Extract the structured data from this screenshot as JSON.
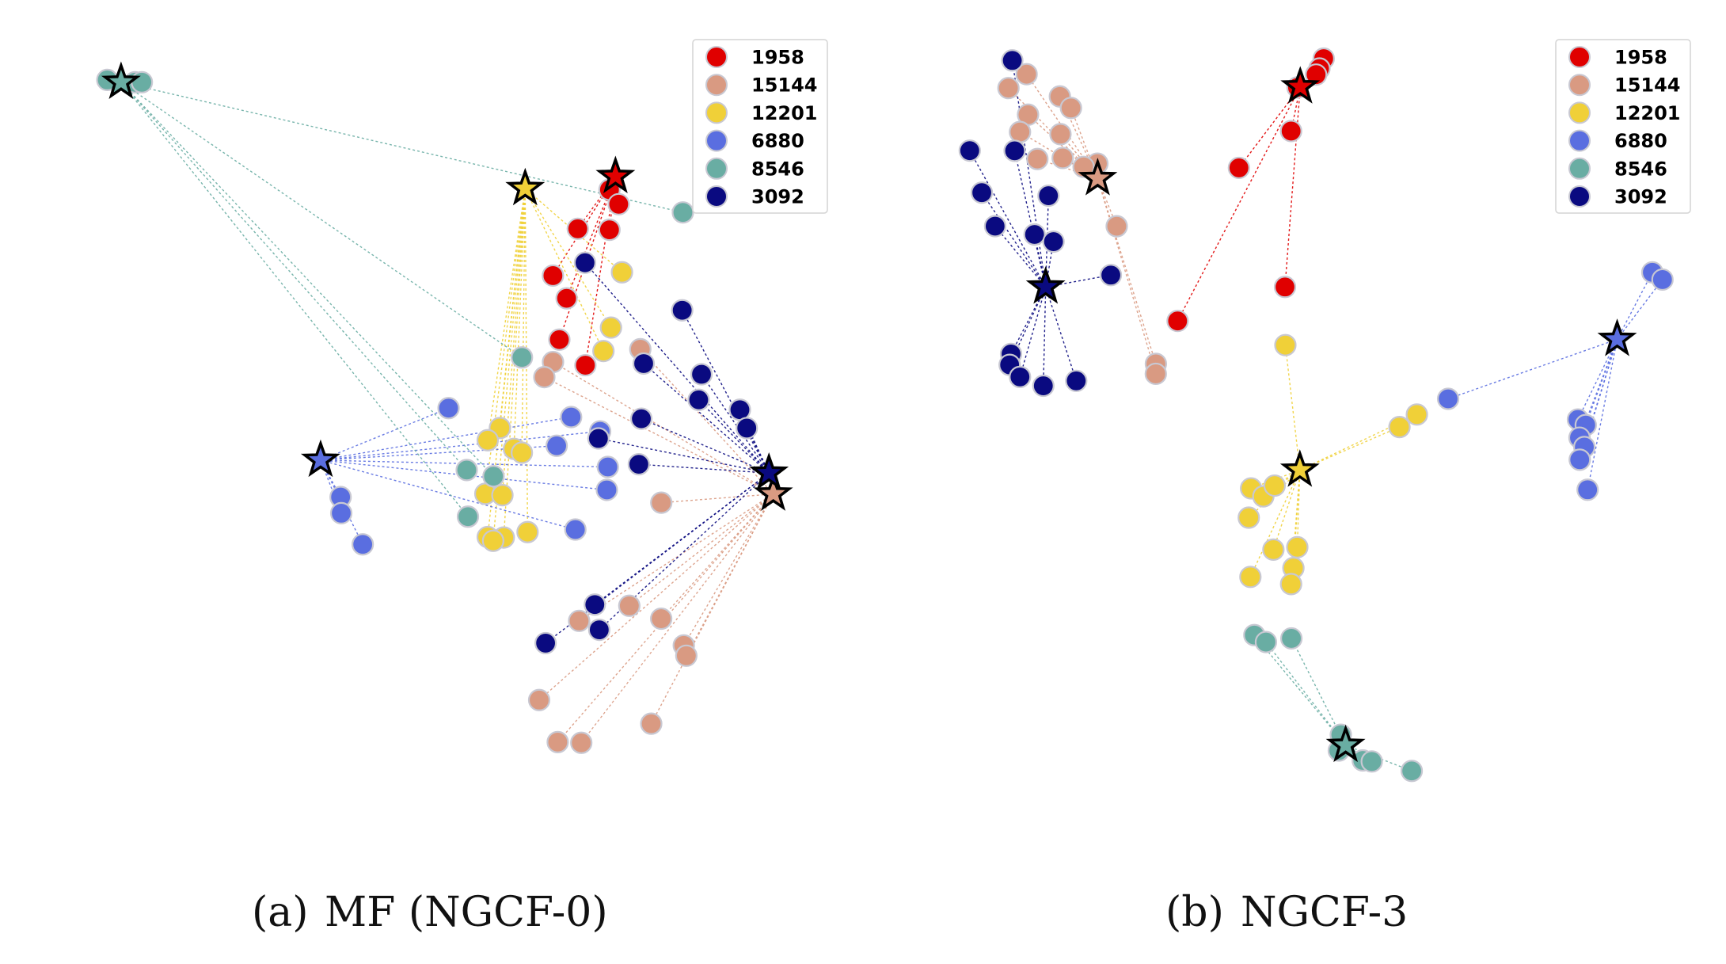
{
  "legend_entries": [
    {
      "label": "1958",
      "color": "#e00000"
    },
    {
      "label": "15144",
      "color": "#d99a82"
    },
    {
      "label": "12201",
      "color": "#f0d038"
    },
    {
      "label": "6880",
      "color": "#5a6ee0"
    },
    {
      "label": "8546",
      "color": "#69ada3"
    },
    {
      "label": "3092",
      "color": "#0a0a80"
    }
  ],
  "chart_data": [
    {
      "type": "scatter",
      "caption_tag": "(a)",
      "caption_title": "MF (NGCF-0)",
      "xlim": [
        0,
        1
      ],
      "ylim": [
        0,
        1
      ],
      "users": [
        {
          "name": "1958",
          "x": 0.7115,
          "y": 0.8183
        },
        {
          "name": "15144",
          "x": 0.9224,
          "y": 0.4016
        },
        {
          "name": "12201",
          "x": 0.5908,
          "y": 0.8025
        },
        {
          "name": "6880",
          "x": 0.3174,
          "y": 0.446
        },
        {
          "name": "8546",
          "x": 0.0507,
          "y": 0.942
        },
        {
          "name": "3092",
          "x": 0.9166,
          "y": 0.4291
        }
      ],
      "items": [
        {
          "name": "1958",
          "points": [
            [
              0.7035,
              0.8009
            ],
            [
              0.7158,
              0.7819
            ],
            [
              0.6611,
              0.7497
            ],
            [
              0.7035,
              0.7483
            ],
            [
              0.6279,
              0.6882
            ],
            [
              0.6462,
              0.6584
            ],
            [
              0.6365,
              0.6042
            ],
            [
              0.6713,
              0.5706
            ]
          ]
        },
        {
          "name": "15144",
          "points": [
            [
              0.7447,
              0.5916
            ],
            [
              0.628,
              0.5748
            ],
            [
              0.6164,
              0.555
            ],
            [
              0.7727,
              0.3902
            ],
            [
              0.73,
              0.2549
            ],
            [
              0.7726,
              0.238
            ],
            [
              0.6629,
              0.2351
            ],
            [
              0.8028,
              0.2029
            ],
            [
              0.8062,
              0.1894
            ],
            [
              0.6095,
              0.1312
            ],
            [
              0.7593,
              0.1002
            ],
            [
              0.6343,
              0.076
            ],
            [
              0.6658,
              0.0751
            ]
          ]
        },
        {
          "name": "12201",
          "points": [
            [
              0.7202,
              0.6926
            ],
            [
              0.7055,
              0.62
            ],
            [
              0.6954,
              0.5892
            ],
            [
              0.557,
              0.4882
            ],
            [
              0.5407,
              0.4722
            ],
            [
              0.5758,
              0.4608
            ],
            [
              0.5864,
              0.4558
            ],
            [
              0.5376,
              0.4019
            ],
            [
              0.5604,
              0.4001
            ],
            [
              0.5407,
              0.3452
            ],
            [
              0.594,
              0.3516
            ],
            [
              0.5622,
              0.3445
            ],
            [
              0.548,
              0.3402
            ]
          ]
        },
        {
          "name": "6880",
          "points": [
            [
              0.4884,
              0.5143
            ],
            [
              0.6522,
              0.5026
            ],
            [
              0.691,
              0.4838
            ],
            [
              0.6329,
              0.4649
            ],
            [
              0.7013,
              0.4371
            ],
            [
              0.3441,
              0.3976
            ],
            [
              0.7,
              0.407
            ],
            [
              0.345,
              0.3764
            ],
            [
              0.3737,
              0.3355
            ],
            [
              0.6579,
              0.355
            ]
          ]
        },
        {
          "name": "8546",
          "points": [
            [
              0.0323,
              0.945
            ],
            [
              0.0694,
              0.942
            ],
            [
              0.0785,
              0.942
            ],
            [
              0.8016,
              0.7711
            ],
            [
              0.5865,
              0.5808
            ],
            [
              0.5127,
              0.4331
            ],
            [
              0.5485,
              0.4249
            ],
            [
              0.5143,
              0.3719
            ]
          ]
        },
        {
          "name": "3092",
          "points": [
            [
              0.6708,
              0.7051
            ],
            [
              0.8007,
              0.6427
            ],
            [
              0.7492,
              0.5728
            ],
            [
              0.8265,
              0.5587
            ],
            [
              0.8227,
              0.5252
            ],
            [
              0.8778,
              0.5122
            ],
            [
              0.887,
              0.4881
            ],
            [
              0.7461,
              0.5004
            ],
            [
              0.6887,
              0.4745
            ],
            [
              0.7427,
              0.4406
            ],
            [
              0.6839,
              0.2565
            ],
            [
              0.6898,
              0.2234
            ],
            [
              0.6181,
              0.2059
            ]
          ]
        }
      ]
    },
    {
      "type": "scatter",
      "caption_tag": "(b)",
      "caption_title": "NGCF-3",
      "xlim": [
        0,
        1
      ],
      "ylim": [
        0,
        1
      ],
      "users": [
        {
          "name": "1958",
          "x": 0.4705,
          "y": 0.936
        },
        {
          "name": "15144",
          "x": 0.1983,
          "y": 0.8156
        },
        {
          "name": "12201",
          "x": 0.47,
          "y": 0.433
        },
        {
          "name": "6880",
          "x": 0.8963,
          "y": 0.6046
        },
        {
          "name": "8546",
          "x": 0.5315,
          "y": 0.0718
        },
        {
          "name": "3092",
          "x": 0.1284,
          "y": 0.6733
        }
      ],
      "items": [
        {
          "name": "1958",
          "points": [
            [
              0.502,
              0.973
            ],
            [
              0.4963,
              0.96
            ],
            [
              0.4918,
              0.952
            ],
            [
              0.4668,
              0.9352
            ],
            [
              0.4582,
              0.8779
            ],
            [
              0.3881,
              0.8296
            ],
            [
              0.45,
              0.6733
            ],
            [
              0.3057,
              0.6287
            ]
          ]
        },
        {
          "name": "15144",
          "points": [
            [
              0.1028,
              0.9525
            ],
            [
              0.0784,
              0.9343
            ],
            [
              0.1475,
              0.9233
            ],
            [
              0.1624,
              0.9082
            ],
            [
              0.1047,
              0.8994
            ],
            [
              0.0939,
              0.8767
            ],
            [
              0.1483,
              0.8738
            ],
            [
              0.1173,
              0.8412
            ],
            [
              0.1513,
              0.8426
            ],
            [
              0.1979,
              0.8352
            ],
            [
              0.1794,
              0.8309
            ],
            [
              0.2239,
              0.753
            ],
            [
              0.2765,
              0.5724
            ],
            [
              0.2764,
              0.5593
            ]
          ]
        },
        {
          "name": "12201",
          "points": [
            [
              0.4505,
              0.597
            ],
            [
              0.6038,
              0.4895
            ],
            [
              0.6272,
              0.5059
            ],
            [
              0.4044,
              0.409
            ],
            [
              0.4209,
              0.3985
            ],
            [
              0.4361,
              0.4126
            ],
            [
              0.4013,
              0.3706
            ],
            [
              0.4344,
              0.3286
            ],
            [
              0.4665,
              0.3318
            ],
            [
              0.4613,
              0.3045
            ],
            [
              0.4035,
              0.2928
            ],
            [
              0.4582,
              0.2834
            ]
          ]
        },
        {
          "name": "6880",
          "points": [
            [
              0.9436,
              0.6925
            ],
            [
              0.9572,
              0.683
            ],
            [
              0.6692,
              0.5265
            ],
            [
              0.8436,
              0.4994
            ],
            [
              0.8541,
              0.4921
            ],
            [
              0.8457,
              0.4755
            ],
            [
              0.8522,
              0.4632
            ],
            [
              0.846,
              0.4466
            ],
            [
              0.8566,
              0.4072
            ]
          ]
        },
        {
          "name": "8546",
          "points": [
            [
              0.4088,
              0.2165
            ],
            [
              0.4244,
              0.2073
            ],
            [
              0.4586,
              0.2121
            ],
            [
              0.525,
              0.0857
            ],
            [
              0.5223,
              0.065
            ],
            [
              0.5545,
              0.052
            ],
            [
              0.5666,
              0.0506
            ],
            [
              0.6203,
              0.0382
            ]
          ]
        },
        {
          "name": "3092",
          "points": [
            [
              0.0836,
              0.9706
            ],
            [
              0.0264,
              0.8522
            ],
            [
              0.0867,
              0.852
            ],
            [
              0.0426,
              0.7971
            ],
            [
              0.1322,
              0.7931
            ],
            [
              0.0605,
              0.7531
            ],
            [
              0.1135,
              0.7422
            ],
            [
              0.139,
              0.7328
            ],
            [
              0.216,
              0.6889
            ],
            [
              0.0819,
              0.5854
            ],
            [
              0.08,
              0.5711
            ],
            [
              0.0939,
              0.5552
            ],
            [
              0.1253,
              0.5436
            ],
            [
              0.1695,
              0.5501
            ]
          ]
        }
      ]
    }
  ]
}
